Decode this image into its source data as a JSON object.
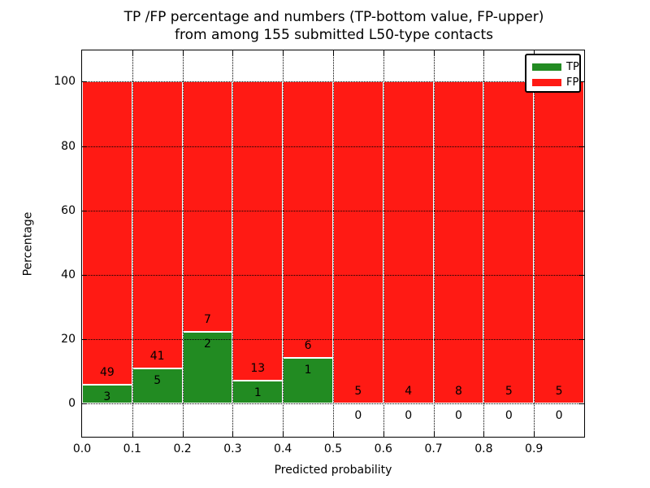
{
  "figure": {
    "background": "#ffffff",
    "title_line1": "TP /FP percentage and numbers (TP-bottom value, FP-upper)",
    "title_line2": "from among 155 submitted L50-type contacts"
  },
  "chart_data": {
    "type": "bar",
    "stacked": true,
    "title": "TP /FP percentage and numbers (TP-bottom value, FP-upper) from among 155 submitted L50-type contacts",
    "xlabel": "Predicted probability",
    "ylabel": "Percentage",
    "xlim": [
      0.0,
      1.0
    ],
    "ylim": [
      -10.3,
      109.7
    ],
    "grid": "dotted, both axes, black",
    "legend_position": "upper right",
    "total_contacts": 155,
    "bar_edge_color": "#ffffff",
    "bin_edges": [
      0.0,
      0.1,
      0.2,
      0.3,
      0.4,
      0.5,
      0.6,
      0.7,
      0.8,
      0.9,
      1.0
    ],
    "x_tick_labels": [
      "0.0",
      "0.1",
      "0.2",
      "0.3",
      "0.4",
      "0.5",
      "0.6",
      "0.7",
      "0.8",
      "0.9"
    ],
    "y_tick_values": [
      0,
      20,
      40,
      60,
      80,
      100
    ],
    "y_tick_labels": [
      "0",
      "20",
      "40",
      "60",
      "80",
      "100"
    ],
    "series": [
      {
        "name": "TP",
        "color": "#228b22",
        "counts": [
          3,
          5,
          2,
          1,
          1,
          0,
          0,
          0,
          0,
          0
        ],
        "percent": [
          5.77,
          10.87,
          22.22,
          7.14,
          14.29,
          0,
          0,
          0,
          0,
          0
        ]
      },
      {
        "name": "FP",
        "color": "#ff1a14",
        "counts": [
          49,
          41,
          7,
          13,
          6,
          5,
          4,
          8,
          5,
          5
        ],
        "percent": [
          94.23,
          89.13,
          77.78,
          92.86,
          85.71,
          100,
          100,
          100,
          100,
          100
        ]
      }
    ]
  }
}
